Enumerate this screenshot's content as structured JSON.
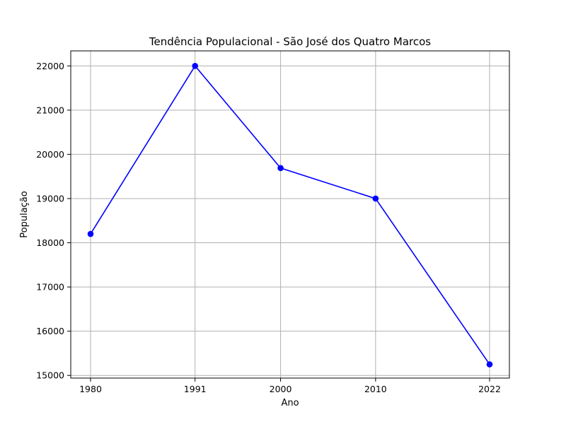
{
  "chart_data": {
    "type": "line",
    "title": "Tendência Populacional - São José dos Quatro Marcos",
    "xlabel": "Ano",
    "ylabel": "População",
    "x": [
      "1980",
      "1991",
      "2000",
      "2010",
      "2022"
    ],
    "y_ticks": [
      "15000",
      "16000",
      "17000",
      "18000",
      "19000",
      "20000",
      "21000",
      "22000"
    ],
    "ylim": [
      14940,
      22340
    ],
    "grid": true,
    "series": [
      {
        "values": [
          18200,
          22000,
          19690,
          19000,
          15250
        ],
        "color": "#0000ff",
        "marker": "circle"
      }
    ]
  }
}
